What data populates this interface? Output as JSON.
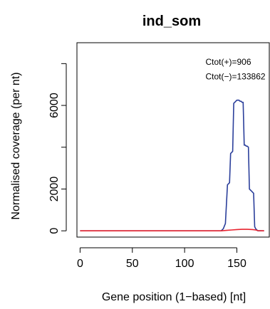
{
  "chart_data": {
    "type": "line",
    "title": "ind_som",
    "xlabel": "Gene position (1−based) [nt]",
    "ylabel": "Normalised coverage (per nt)",
    "xlim": [
      -3,
      181
    ],
    "ylim": [
      -300,
      9000
    ],
    "xticks": [
      0,
      50,
      100,
      150
    ],
    "yticks": [
      0,
      2000,
      6000
    ],
    "yticks_minor": [
      4000,
      8000
    ],
    "grid": false,
    "legend": "none",
    "annotations": [
      {
        "text": "Ctot(+)=906",
        "x": 120,
        "y": 7950
      },
      {
        "text": "Ctot(−)=133862",
        "x": 120,
        "y": 7250
      }
    ],
    "series": [
      {
        "color": "#2b3f9b",
        "x": [
          0,
          135,
          137,
          139,
          141,
          142,
          143,
          144,
          145,
          146,
          147,
          148,
          149,
          150,
          151,
          152,
          153,
          154,
          155,
          156,
          157,
          158,
          159,
          160,
          161,
          162,
          163,
          164,
          165,
          166,
          167,
          168,
          169,
          170,
          171,
          172,
          173,
          174,
          175,
          176
        ],
        "y": [
          0,
          0,
          100,
          350,
          2200,
          2250,
          2300,
          3700,
          3750,
          3800,
          6100,
          6150,
          6200,
          6250,
          6250,
          6250,
          6200,
          6200,
          6150,
          6150,
          4100,
          4100,
          4050,
          4050,
          4000,
          2000,
          1950,
          1900,
          1850,
          1800,
          200,
          100,
          50,
          0,
          0,
          0,
          0,
          0,
          0,
          0
        ]
      },
      {
        "color": "#e8242f",
        "x": [
          0,
          135,
          140,
          145,
          150,
          155,
          160,
          165,
          168,
          170,
          176
        ],
        "y": [
          0,
          0,
          20,
          40,
          60,
          70,
          70,
          60,
          40,
          10,
          0
        ]
      }
    ]
  }
}
